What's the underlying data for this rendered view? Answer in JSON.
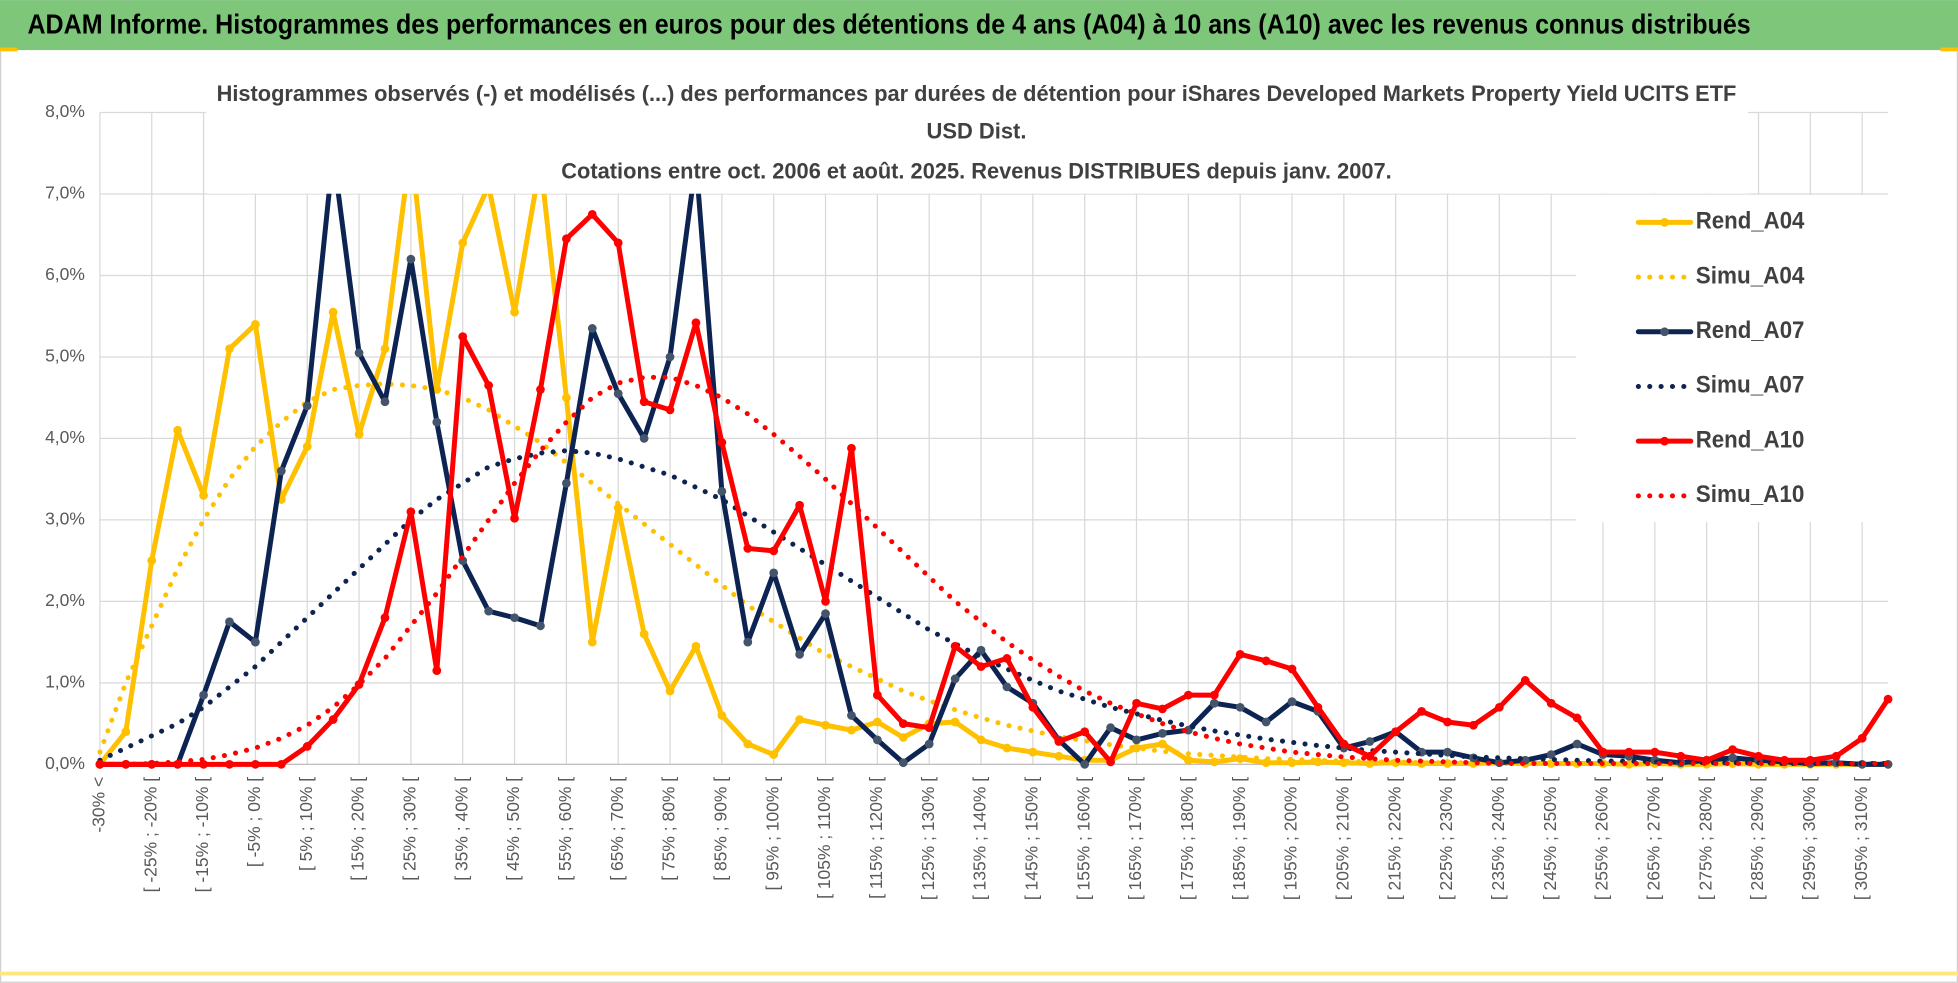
{
  "header": "ADAM Informe. Histogrammes des performances en euros pour des détentions de 4 ans (A04) à 10 ans (A10) avec les revenus connus distribués",
  "chart_data": {
    "type": "line",
    "title": [
      "Histogrammes observés (-) et modélisés (...) des performances par durées de détention pour iShares Developed Markets Property Yield UCITS ETF",
      "USD Dist.",
      "Cotations entre oct. 2006 et août. 2025. Revenus DISTRIBUES depuis janv. 2007."
    ],
    "categories": [
      "-30% <",
      null,
      "[ -25% ; -20% [",
      null,
      "[ -15% ; -10% [",
      null,
      "[ -5% ; 0% [",
      null,
      "[ 5% ; 10% [",
      null,
      "[ 15% ; 20% [",
      null,
      "[ 25% ; 30% [",
      null,
      "[ 35% ; 40% [",
      null,
      "[ 45% ; 50% [",
      null,
      "[ 55% ; 60% [",
      null,
      "[ 65% ; 70% [",
      null,
      "[ 75% ; 80% [",
      null,
      "[ 85% ; 90% [",
      null,
      "[ 95% ; 100% [",
      null,
      "[ 105% ; 110% [",
      null,
      "[ 115% ; 120% [",
      null,
      "[ 125% ; 130% [",
      null,
      "[ 135% ; 140% [",
      null,
      "[ 145% ; 150% [",
      null,
      "[ 155% ; 160% [",
      null,
      "[ 165% ; 170% [",
      null,
      "[ 175% ; 180% [",
      null,
      "[ 185% ; 190% [",
      null,
      "[ 195% ; 200% [",
      null,
      "[ 205% ; 210% [",
      null,
      "[ 215% ; 220% [",
      null,
      "[ 225% ; 230% [",
      null,
      "[ 235% ; 240% [",
      null,
      "[ 245% ; 250% [",
      null,
      "[ 255% ; 260% [",
      null,
      "[ 265% ; 270% [",
      null,
      "[ 275% ; 280% [",
      null,
      "[ 285% ; 290% [",
      null,
      "[ 295% ; 300% [",
      null,
      "[ 305% ; 310% [",
      null
    ],
    "series": [
      {
        "name": "Rend_A04",
        "color": "#ffc000",
        "style": "solid",
        "marker_color": "#ffc000",
        "values": [
          0,
          0.4,
          2.5,
          4.1,
          3.3,
          5.1,
          5.4,
          3.25,
          3.9,
          5.55,
          4.05,
          5.1,
          7.6,
          4.6,
          6.4,
          7.1,
          5.55,
          7.4,
          4.5,
          1.5,
          3.15,
          1.6,
          0.9,
          1.45,
          0.6,
          0.25,
          0.12,
          0.55,
          0.48,
          0.42,
          0.52,
          0.33,
          0.5,
          0.52,
          0.3,
          0.2,
          0.15,
          0.1,
          0.05,
          0.05,
          0.2,
          0.25,
          0.05,
          0.03,
          0.07,
          0.02,
          0.02,
          0.03,
          0.02,
          0.01,
          0.02,
          0.01,
          0.01,
          0.01,
          0.02,
          0.01,
          0.01,
          0.01,
          0.01,
          0,
          0.01,
          0,
          0,
          0.01,
          0,
          0,
          0,
          0,
          0,
          0
        ]
      },
      {
        "name": "Simu_A04",
        "color": "#ffc000",
        "style": "dotted",
        "values": [
          0.15,
          1.0,
          1.7,
          2.4,
          3.0,
          3.5,
          3.9,
          4.2,
          4.45,
          4.6,
          4.65,
          4.67,
          4.65,
          4.6,
          4.5,
          4.35,
          4.15,
          3.95,
          3.7,
          3.45,
          3.2,
          2.95,
          2.7,
          2.45,
          2.2,
          1.95,
          1.75,
          1.55,
          1.35,
          1.2,
          1.05,
          0.9,
          0.78,
          0.67,
          0.57,
          0.48,
          0.41,
          0.34,
          0.29,
          0.24,
          0.2,
          0.16,
          0.13,
          0.11,
          0.09,
          0.07,
          0.06,
          0.05,
          0.04,
          0.03,
          0.03,
          0.02,
          0.02,
          0.02,
          0.01,
          0.01,
          0.01,
          0.01,
          0.01,
          0.01,
          0.01,
          0.01,
          0.01,
          0.01,
          0.01,
          0.01,
          0.01,
          0.01,
          0.01,
          0.01
        ]
      },
      {
        "name": "Rend_A07",
        "color": "#0d2452",
        "style": "solid",
        "marker_color": "#44546a",
        "values": [
          0,
          0,
          0,
          0,
          0.85,
          1.75,
          1.5,
          3.6,
          4.4,
          7.5,
          5.05,
          4.45,
          6.2,
          4.2,
          2.5,
          1.88,
          1.8,
          1.7,
          3.45,
          5.35,
          4.55,
          4.0,
          5.0,
          7.4,
          3.35,
          1.5,
          2.35,
          1.35,
          1.85,
          0.6,
          0.3,
          0.02,
          0.25,
          1.05,
          1.4,
          0.95,
          0.75,
          0.3,
          0,
          0.45,
          0.3,
          0.38,
          0.42,
          0.75,
          0.7,
          0.52,
          0.77,
          0.65,
          0.2,
          0.28,
          0.4,
          0.15,
          0.15,
          0.08,
          0.02,
          0.05,
          0.12,
          0.25,
          0.12,
          0.1,
          0.05,
          0.02,
          0.05,
          0.08,
          0.05,
          0.03,
          0.01,
          0.02,
          0,
          0
        ]
      },
      {
        "name": "Simu_A07",
        "color": "#0d2452",
        "style": "dotted",
        "values": [
          0.05,
          0.2,
          0.35,
          0.5,
          0.7,
          0.95,
          1.2,
          1.5,
          1.8,
          2.1,
          2.4,
          2.7,
          3.0,
          3.25,
          3.45,
          3.65,
          3.75,
          3.82,
          3.85,
          3.82,
          3.75,
          3.65,
          3.55,
          3.4,
          3.25,
          3.05,
          2.85,
          2.65,
          2.45,
          2.25,
          2.05,
          1.85,
          1.65,
          1.48,
          1.32,
          1.17,
          1.03,
          0.9,
          0.8,
          0.7,
          0.62,
          0.54,
          0.47,
          0.41,
          0.36,
          0.31,
          0.27,
          0.23,
          0.2,
          0.17,
          0.15,
          0.13,
          0.11,
          0.09,
          0.08,
          0.07,
          0.06,
          0.05,
          0.04,
          0.04,
          0.03,
          0.03,
          0.02,
          0.02,
          0.02,
          0.01,
          0.01,
          0.01,
          0.01,
          0.01
        ]
      },
      {
        "name": "Rend_A10",
        "color": "#ff0000",
        "style": "solid",
        "marker_color": "#ff0000",
        "values": [
          0,
          0,
          0,
          0,
          0,
          0,
          0,
          0,
          0.22,
          0.55,
          0.98,
          1.8,
          3.1,
          1.15,
          5.25,
          4.65,
          3.02,
          4.6,
          6.45,
          6.75,
          6.4,
          4.45,
          4.35,
          5.42,
          3.95,
          2.65,
          2.62,
          3.18,
          2.0,
          3.88,
          0.85,
          0.5,
          0.45,
          1.45,
          1.2,
          1.3,
          0.7,
          0.28,
          0.4,
          0.03,
          0.75,
          0.68,
          0.85,
          0.85,
          1.35,
          1.27,
          1.17,
          0.7,
          0.25,
          0.1,
          0.4,
          0.65,
          0.52,
          0.48,
          0.7,
          1.03,
          0.75,
          0.57,
          0.15,
          0.15,
          0.15,
          0.1,
          0.05,
          0.18,
          0.1,
          0.05,
          0.05,
          0.1,
          0.32,
          0.8
        ]
      },
      {
        "name": "Simu_A10",
        "color": "#ff0000",
        "style": "dotted",
        "values": [
          0,
          0,
          0.01,
          0.03,
          0.06,
          0.12,
          0.2,
          0.32,
          0.48,
          0.7,
          0.98,
          1.3,
          1.7,
          2.1,
          2.55,
          3.0,
          3.45,
          3.85,
          4.2,
          4.5,
          4.68,
          4.75,
          4.75,
          4.65,
          4.5,
          4.3,
          4.05,
          3.78,
          3.5,
          3.2,
          2.9,
          2.6,
          2.3,
          2.0,
          1.75,
          1.5,
          1.28,
          1.08,
          0.9,
          0.75,
          0.62,
          0.5,
          0.4,
          0.32,
          0.25,
          0.2,
          0.15,
          0.12,
          0.09,
          0.07,
          0.05,
          0.04,
          0.03,
          0.02,
          0.01,
          0.01,
          0.01,
          0.01,
          0.01,
          0.01,
          0.01,
          0.01,
          0.01,
          0.01,
          0.01,
          0.01,
          0.01,
          0.01,
          0.01,
          0.01
        ]
      }
    ],
    "ylim": [
      0,
      8
    ],
    "yticks": [
      {
        "value": 0,
        "label": "0,0%"
      },
      {
        "value": 1,
        "label": "1,0%"
      },
      {
        "value": 2,
        "label": "2,0%"
      },
      {
        "value": 3,
        "label": "3,0%"
      },
      {
        "value": 4,
        "label": "4,0%"
      },
      {
        "value": 5,
        "label": "5,0%"
      },
      {
        "value": 6,
        "label": "6,0%"
      },
      {
        "value": 7,
        "label": "7,0%"
      },
      {
        "value": 8,
        "label": "8,0%"
      }
    ],
    "grid": true,
    "legend": "right"
  }
}
